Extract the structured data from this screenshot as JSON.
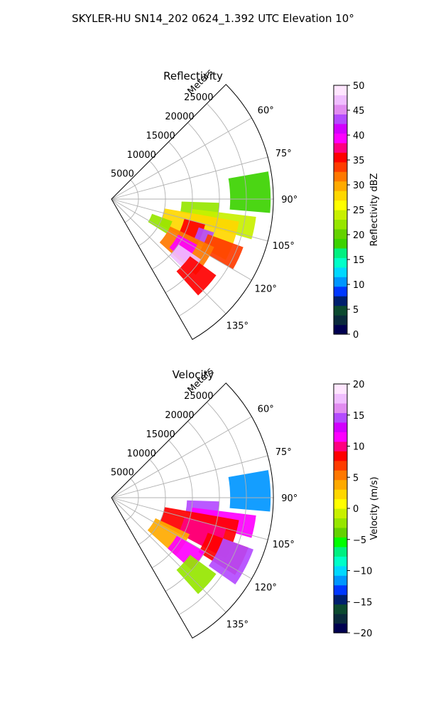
{
  "figure_title": "SKYLER-HU  SN14_202  0624_1.392 UTC Elevation 10°",
  "colors": {
    "grid": "#b0b0b0",
    "axes": "#000000",
    "reflectivity_colormap": [
      "#000050",
      "#0a2a3c",
      "#0c4a30",
      "#00206e",
      "#0038ff",
      "#0096ff",
      "#00d8ff",
      "#00ffc8",
      "#00f080",
      "#3cd200",
      "#64d200",
      "#96e600",
      "#c8f000",
      "#ffff00",
      "#ffd700",
      "#ffaa00",
      "#ff7800",
      "#ff3c00",
      "#ff0000",
      "#ff0080",
      "#ff00ff",
      "#d200ff",
      "#b44bff",
      "#e18cf0",
      "#f0beff",
      "#ffe6ff"
    ],
    "velocity_colormap": [
      "#000050",
      "#0a2a3c",
      "#0c4a30",
      "#00206e",
      "#0038ff",
      "#0096ff",
      "#00d8ff",
      "#00ffc8",
      "#00f080",
      "#00ff00",
      "#64d200",
      "#96e600",
      "#c8f000",
      "#ffff00",
      "#ffd700",
      "#ffaa00",
      "#ff7800",
      "#ff3c00",
      "#ff0000",
      "#ff0080",
      "#ff00ff",
      "#d200ff",
      "#b44bff",
      "#e18cf0",
      "#f0beff",
      "#ffe6ff"
    ]
  },
  "chart_data": [
    {
      "type": "heatmap",
      "projection": "polar-sector",
      "field": "reflectivity",
      "title": "Reflectivity",
      "radial_label": "Meters",
      "radial_ticks": [
        5000,
        10000,
        15000,
        20000,
        25000
      ],
      "radial_tick_labels": [
        "5000",
        "10000",
        "15000",
        "20000",
        "25000"
      ],
      "rmax": 30000,
      "azimuth_range_deg": [
        45,
        150
      ],
      "azimuth_ticks": [
        "60°",
        "75°",
        "90°",
        "105°",
        "120°",
        "135°"
      ],
      "azimuth_tick_values": [
        60,
        75,
        90,
        105,
        120,
        135
      ],
      "grid": true,
      "colorbar": {
        "label": "Reflectivity dBZ",
        "range": [
          0,
          50
        ],
        "ticks": [
          0,
          5,
          10,
          15,
          20,
          25,
          30,
          35,
          40,
          45,
          50
        ],
        "tick_labels": [
          "0",
          "5",
          "10",
          "15",
          "20",
          "25",
          "30",
          "35",
          "40",
          "45",
          "50"
        ]
      },
      "echo_regions": [
        {
          "az": [
            80,
            95
          ],
          "r": [
            22000,
            29500
          ],
          "value": 19
        },
        {
          "az": [
            92,
            101
          ],
          "r": [
            13000,
            20000
          ],
          "value": 22
        },
        {
          "az": [
            97,
            106
          ],
          "r": [
            15000,
            27000
          ],
          "value": 24
        },
        {
          "az": [
            100,
            118
          ],
          "r": [
            10000,
            24000
          ],
          "value": 27
        },
        {
          "az": [
            105,
            118
          ],
          "r": [
            14000,
            18000
          ],
          "value": 36
        },
        {
          "az": [
            108,
            116
          ],
          "r": [
            17000,
            20000
          ],
          "value": 44
        },
        {
          "az": [
            110,
            120
          ],
          "r": [
            19000,
            26000
          ],
          "value": 33
        },
        {
          "az": [
            115,
            132
          ],
          "r": [
            12000,
            21000
          ],
          "value": 31
        },
        {
          "az": [
            118,
            130
          ],
          "r": [
            14000,
            18000
          ],
          "value": 39
        },
        {
          "az": [
            124,
            134
          ],
          "r": [
            15000,
            20000
          ],
          "value": 47
        },
        {
          "az": [
            126,
            138
          ],
          "r": [
            18000,
            24000
          ],
          "value": 35
        },
        {
          "az": [
            110,
            122
          ],
          "r": [
            8000,
            12000
          ],
          "value": 22
        }
      ]
    },
    {
      "type": "heatmap",
      "projection": "polar-sector",
      "field": "velocity",
      "title": "Velocity",
      "radial_label": "Meters",
      "radial_ticks": [
        5000,
        10000,
        15000,
        20000,
        25000
      ],
      "radial_tick_labels": [
        "5000",
        "10000",
        "15000",
        "20000",
        "25000"
      ],
      "rmax": 30000,
      "azimuth_range_deg": [
        45,
        150
      ],
      "azimuth_ticks": [
        "60°",
        "75°",
        "90°",
        "105°",
        "120°",
        "135°"
      ],
      "azimuth_tick_values": [
        60,
        75,
        90,
        105,
        120,
        135
      ],
      "grid": true,
      "colorbar": {
        "label": "Velocity (m/s)",
        "range": [
          -20,
          20
        ],
        "ticks": [
          -20,
          -15,
          -10,
          -5,
          0,
          5,
          10,
          15,
          20
        ],
        "tick_labels": [
          "−20",
          "−15",
          "−10",
          "−5",
          "0",
          "5",
          "10",
          "15",
          "20"
        ]
      },
      "echo_regions": [
        {
          "az": [
            80,
            95
          ],
          "r": [
            22000,
            29500
          ],
          "value": -12
        },
        {
          "az": [
            92,
            101
          ],
          "r": [
            14000,
            20000
          ],
          "value": 14
        },
        {
          "az": [
            97,
            106
          ],
          "r": [
            15000,
            27000
          ],
          "value": 11
        },
        {
          "az": [
            100,
            118
          ],
          "r": [
            10000,
            24000
          ],
          "value": 8
        },
        {
          "az": [
            105,
            118
          ],
          "r": [
            14000,
            22000
          ],
          "value": 10
        },
        {
          "az": [
            110,
            122
          ],
          "r": [
            19000,
            27000
          ],
          "value": 9
        },
        {
          "az": [
            115,
            132
          ],
          "r": [
            9000,
            16000
          ],
          "value": 4
        },
        {
          "az": [
            120,
            132
          ],
          "r": [
            14000,
            20000
          ],
          "value": 12
        },
        {
          "az": [
            126,
            138
          ],
          "r": [
            18000,
            24000
          ],
          "value": -2
        },
        {
          "az": [
            110,
            125
          ],
          "r": [
            22000,
            28000
          ],
          "value": 15
        }
      ]
    }
  ]
}
